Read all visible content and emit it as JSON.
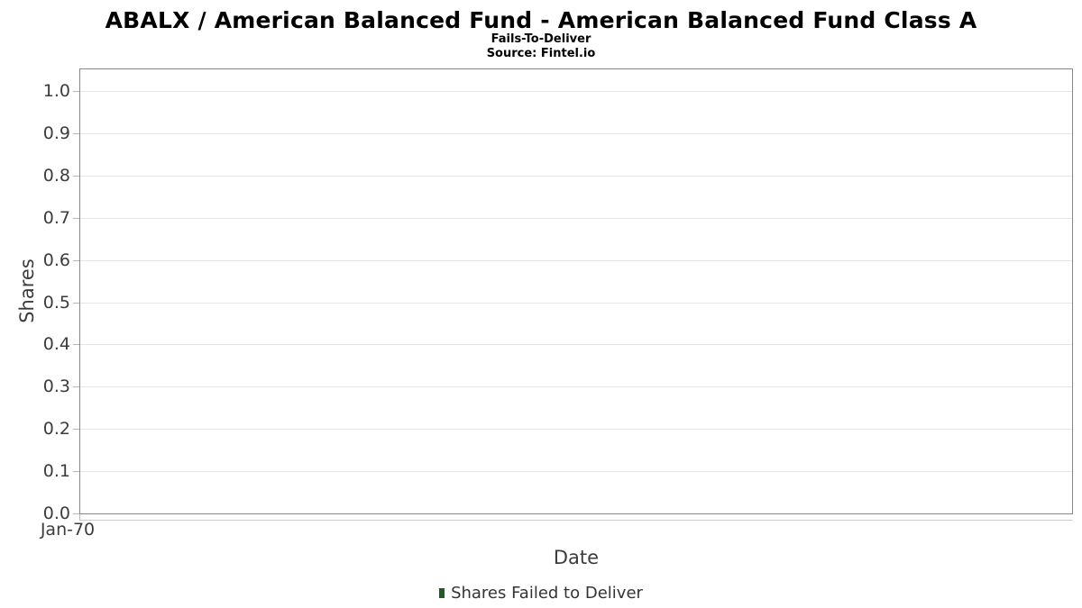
{
  "chart_data": {
    "type": "bar",
    "title": "ABALX / American Balanced Fund - American Balanced Fund Class A",
    "subtitle": "Fails-To-Deliver",
    "source": "Source: Fintel.io",
    "xlabel": "Date",
    "ylabel": "Shares",
    "ylim": [
      0.0,
      1.05
    ],
    "y_ticks": [
      {
        "value": 0.0,
        "label": "0.0"
      },
      {
        "value": 0.1,
        "label": "0.1"
      },
      {
        "value": 0.2,
        "label": "0.2"
      },
      {
        "value": 0.3,
        "label": "0.3"
      },
      {
        "value": 0.4,
        "label": "0.4"
      },
      {
        "value": 0.5,
        "label": "0.5"
      },
      {
        "value": 0.6,
        "label": "0.6"
      },
      {
        "value": 0.7,
        "label": "0.7"
      },
      {
        "value": 0.8,
        "label": "0.8"
      },
      {
        "value": 0.9,
        "label": "0.9"
      },
      {
        "value": 1.0,
        "label": "1.0"
      }
    ],
    "x_ticks": [
      "Jan-70"
    ],
    "grid": "horizontal-only",
    "legend": {
      "position": "bottom-center",
      "items": [
        {
          "label": "Shares Failed to Deliver",
          "marker": "square",
          "color": "#23582d"
        }
      ]
    },
    "series": [
      {
        "name": "Shares Failed to Deliver",
        "x": [],
        "values": []
      }
    ],
    "colors": {
      "frame": "#878787",
      "gridline": "#e6e6e6",
      "tick": "#b8b8b8",
      "axis_line": "#cccccc",
      "title_text": "#000000",
      "label_text": "#3c3c3c",
      "legend_marker": "#23582d"
    }
  }
}
